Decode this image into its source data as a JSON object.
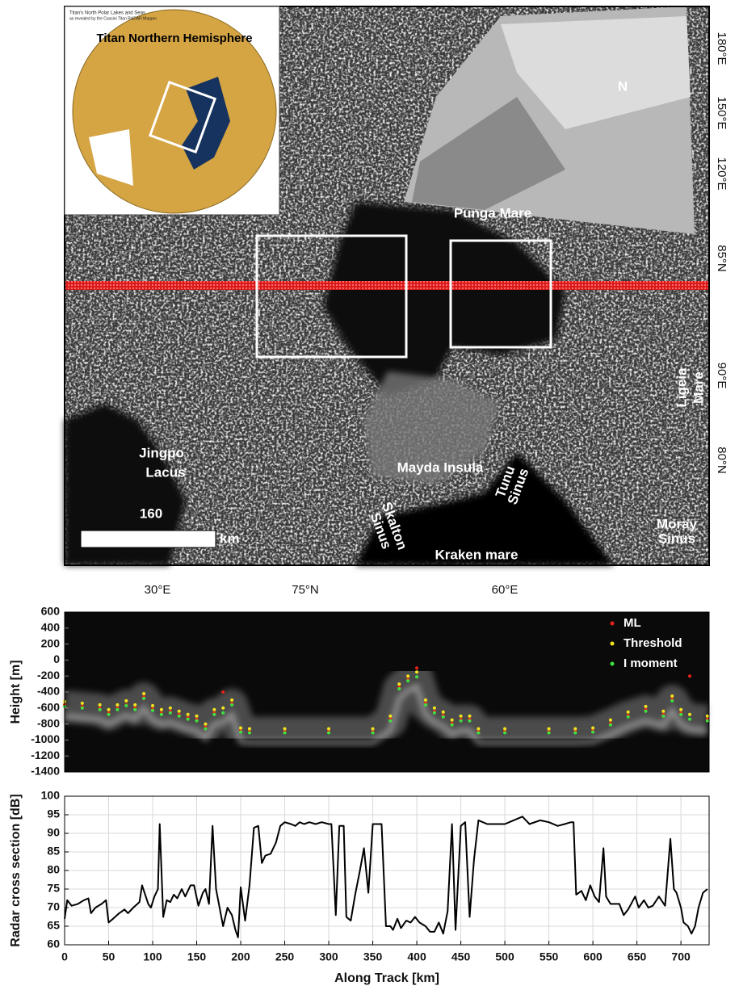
{
  "map": {
    "inset_title": "Titan Northern Hemisphere",
    "inset_caption": [
      "Titan's North Polar Lakes and Seas",
      "as revealed by the Cassini Titan RADAR Mapper"
    ],
    "labels": {
      "north": "N",
      "punga": "Punga Mare",
      "jingpo": [
        "Jingpo",
        "Lacus"
      ],
      "mayda": "Mayda Insula",
      "skalton": [
        "Skalton",
        "Sinus"
      ],
      "tunu": [
        "Tunu",
        "Sinus"
      ],
      "kraken": "Kraken mare",
      "moray": [
        "Moray",
        "Sinus"
      ],
      "ligeia": [
        "Ligeia",
        "Mare"
      ]
    },
    "scale_value": "160",
    "scale_unit": "km",
    "right_labels": [
      "180°E",
      "150°E",
      "120°E",
      "85°N",
      "90°E",
      "80°N"
    ],
    "bottom_labels": [
      "30°E",
      "75°N",
      "60°E"
    ]
  },
  "chart_data": [
    {
      "type": "scatter",
      "ylabel": "Height [m]",
      "xlim": [
        0,
        732
      ],
      "ylim": [
        -1400,
        600
      ],
      "yticks": [
        600,
        400,
        200,
        0,
        -200,
        -400,
        -600,
        -800,
        -1000,
        -1200,
        -1400
      ],
      "legend": "upper right",
      "x": [
        0,
        20,
        40,
        50,
        60,
        70,
        80,
        90,
        100,
        110,
        120,
        130,
        140,
        150,
        160,
        170,
        180,
        190,
        200,
        210,
        250,
        300,
        350,
        370,
        380,
        390,
        400,
        410,
        420,
        430,
        440,
        450,
        460,
        470,
        500,
        550,
        580,
        600,
        620,
        640,
        660,
        680,
        690,
        700,
        710,
        730
      ],
      "series": [
        {
          "name": "ML",
          "color": "#e8221c",
          "values": [
            -560,
            -580,
            -600,
            -660,
            -600,
            -560,
            -600,
            -460,
            -610,
            -660,
            -640,
            -680,
            -720,
            -740,
            -840,
            -660,
            -400,
            -540,
            -880,
            -890,
            -890,
            -890,
            -890,
            -740,
            -340,
            -240,
            -100,
            -540,
            -640,
            -690,
            -790,
            -740,
            -740,
            -890,
            -890,
            -890,
            -890,
            -880,
            -790,
            -690,
            -620,
            -680,
            -490,
            -660,
            -200,
            -740
          ]
        },
        {
          "name": "Threshold",
          "color": "#f2e41c",
          "values": [
            -520,
            -540,
            -560,
            -620,
            -560,
            -510,
            -560,
            -420,
            -570,
            -620,
            -600,
            -640,
            -680,
            -700,
            -800,
            -620,
            -600,
            -500,
            -850,
            -860,
            -860,
            -860,
            -860,
            -700,
            -300,
            -200,
            -150,
            -500,
            -600,
            -650,
            -750,
            -700,
            -700,
            -860,
            -860,
            -860,
            -860,
            -850,
            -750,
            -650,
            -580,
            -640,
            -450,
            -620,
            -680,
            -700
          ]
        },
        {
          "name": "I moment",
          "color": "#3ee23e",
          "values": [
            -580,
            -600,
            -620,
            -680,
            -620,
            -570,
            -620,
            -480,
            -630,
            -680,
            -660,
            -700,
            -740,
            -760,
            -860,
            -680,
            -660,
            -560,
            -900,
            -910,
            -910,
            -910,
            -910,
            -760,
            -360,
            -260,
            -210,
            -560,
            -660,
            -710,
            -810,
            -760,
            -760,
            -910,
            -910,
            -910,
            -910,
            -900,
            -810,
            -710,
            -640,
            -700,
            -510,
            -680,
            -740,
            -760
          ]
        }
      ]
    },
    {
      "type": "line",
      "xlabel": "Along Track [km]",
      "ylabel": "Radar cross section [dB]",
      "xlim": [
        0,
        732
      ],
      "ylim": [
        60,
        100
      ],
      "xticks": [
        0,
        50,
        100,
        150,
        200,
        250,
        300,
        350,
        400,
        450,
        500,
        550,
        600,
        650,
        700
      ],
      "yticks": [
        60,
        65,
        70,
        75,
        80,
        85,
        90,
        95,
        100
      ],
      "grid": true,
      "color": "#000000",
      "x": [
        0,
        3,
        8,
        15,
        22,
        27,
        30,
        35,
        42,
        47,
        50,
        55,
        62,
        68,
        72,
        78,
        85,
        88,
        95,
        98,
        102,
        106,
        108,
        112,
        116,
        120,
        124,
        128,
        133,
        137,
        143,
        147,
        152,
        157,
        160,
        164,
        168,
        172,
        176,
        180,
        185,
        190,
        194,
        197,
        200,
        205,
        210,
        215,
        220,
        224,
        228,
        234,
        240,
        245,
        250,
        257,
        262,
        267,
        272,
        278,
        285,
        292,
        300,
        303,
        308,
        312,
        317,
        320,
        325,
        330,
        335,
        340,
        345,
        350,
        360,
        365,
        370,
        373,
        378,
        382,
        388,
        393,
        398,
        403,
        410,
        415,
        420,
        425,
        430,
        435,
        440,
        444,
        450,
        455,
        460,
        465,
        470,
        475,
        480,
        490,
        500,
        505,
        515,
        520,
        528,
        540,
        550,
        560,
        568,
        575,
        578,
        581,
        587,
        592,
        597,
        602,
        607,
        612,
        615,
        620,
        630,
        635,
        640,
        648,
        652,
        658,
        663,
        668,
        675,
        682,
        688,
        692,
        695,
        700,
        703,
        708,
        712,
        716,
        720,
        725,
        730
      ],
      "values": [
        67,
        72,
        70.5,
        71,
        72,
        72.5,
        68.5,
        70,
        71,
        72,
        66,
        67,
        68.5,
        69.5,
        68.5,
        70,
        71.5,
        76,
        71,
        70,
        73,
        75,
        92.5,
        67.5,
        72,
        71.5,
        73.5,
        72.5,
        75,
        73,
        76,
        76,
        70.5,
        74,
        75,
        71,
        92,
        75,
        70,
        65,
        70,
        68,
        64,
        62,
        75.5,
        66.5,
        76,
        91.5,
        92,
        82,
        84,
        84.5,
        87.5,
        92,
        93,
        92.5,
        92,
        93,
        92.5,
        93,
        92.5,
        93,
        92.5,
        92.5,
        68,
        92,
        92,
        67.5,
        66.5,
        73.5,
        79.5,
        86,
        74,
        92.5,
        92.5,
        65,
        65,
        64,
        67,
        64.5,
        66.5,
        66,
        67.5,
        66,
        65,
        63.5,
        63.5,
        66,
        63,
        69,
        92.5,
        64,
        92,
        93,
        67.5,
        83,
        93.5,
        93,
        92.5,
        92.5,
        92.5,
        93,
        94,
        94.5,
        92.5,
        93.5,
        93,
        92,
        92.5,
        93,
        93,
        73.5,
        74.5,
        72,
        76,
        73,
        71.5,
        86,
        73,
        71,
        71,
        68,
        69.5,
        73,
        70,
        72,
        70,
        70.5,
        73,
        70.5,
        88.5,
        75,
        74,
        70,
        66,
        65,
        63,
        65,
        70,
        74,
        75
      ]
    }
  ]
}
